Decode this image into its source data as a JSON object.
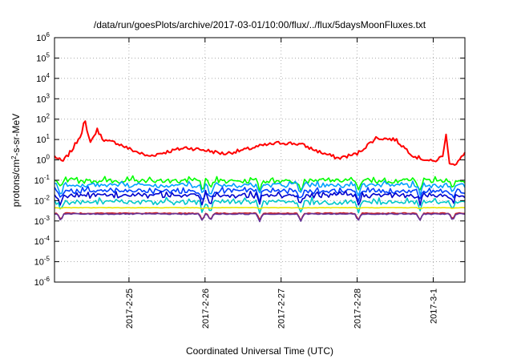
{
  "chart_data": {
    "type": "line",
    "title": "/data/run/goesPlots/archive/2017-03-01/10:00/flux/../flux/5daysMoonFluxes.txt",
    "xlabel": "Coordinated Universal Time (UTC)",
    "ylabel": "protons/cm2-s-sr-MeV",
    "ylabel_parts": {
      "base": "protons/cm",
      "sup": "2",
      "rest": "-s-sr-MeV"
    },
    "yscale": "log",
    "ylim": [
      1e-06,
      1000000.0
    ],
    "xlim": [
      "2017-02-24 00:30",
      "2017-03-01 10:00"
    ],
    "x_tick_labels": [
      "2017-2-25",
      "2017-2-26",
      "2017-2-27",
      "2017-2-28",
      "2017-3-1"
    ],
    "y_tick_exponents": [
      -6,
      -5,
      -4,
      -3,
      -2,
      -1,
      0,
      1,
      2,
      3,
      4,
      5,
      6
    ],
    "grid": true,
    "legend": "none",
    "series": [
      {
        "color": "#ff0000",
        "base": 3.0,
        "x": [
          "2017-02-24 00:30",
          "2017-02-24 03:00",
          "2017-02-24 06:00",
          "2017-02-24 09:00",
          "2017-02-24 10:00",
          "2017-02-24 11:00",
          "2017-02-24 12:00",
          "2017-02-24 14:00",
          "2017-02-24 15:30",
          "2017-02-24 17:00",
          "2017-02-24 20:00",
          "2017-02-25 00:00",
          "2017-02-25 06:00",
          "2017-02-25 12:00",
          "2017-02-25 18:00",
          "2017-02-26 00:00",
          "2017-02-26 06:00",
          "2017-02-26 12:00",
          "2017-02-26 18:00",
          "2017-02-27 00:00",
          "2017-02-27 06:00",
          "2017-02-27 12:00",
          "2017-02-27 18:00",
          "2017-02-28 00:00",
          "2017-02-28 06:00",
          "2017-02-28 12:00",
          "2017-02-28 18:00",
          "2017-03-01 00:00",
          "2017-03-01 03:00",
          "2017-03-01 04:00",
          "2017-03-01 05:00",
          "2017-03-01 07:00",
          "2017-03-01 10:00"
        ],
        "y": [
          1.5,
          0.8,
          3.0,
          20,
          100,
          15,
          8,
          30,
          12,
          8,
          7,
          3.5,
          1.5,
          2.5,
          4,
          3,
          2,
          3,
          5,
          7,
          6,
          2.5,
          1.2,
          2,
          12,
          10,
          1.5,
          0.8,
          1.5,
          20,
          0.8,
          0.6,
          2
        ]
      },
      {
        "color": "#00ff00",
        "base": 0.09,
        "x": [],
        "y": []
      },
      {
        "color": "#00a0ff",
        "base": 0.055,
        "x": [],
        "y": []
      },
      {
        "color": "#0040ff",
        "base": 0.028,
        "x": [],
        "y": []
      },
      {
        "color": "#0000cc",
        "base": 0.017,
        "x": [],
        "y": []
      },
      {
        "color": "#00c8c8",
        "base": 0.008,
        "x": [],
        "y": []
      },
      {
        "color": "#e8e800",
        "base": 0.0045,
        "x": [],
        "y": []
      },
      {
        "color": "#cc2020",
        "base": 0.0024,
        "x": [],
        "y": []
      },
      {
        "color": "#663399",
        "base": 0.0022,
        "x": [],
        "y": []
      }
    ]
  }
}
